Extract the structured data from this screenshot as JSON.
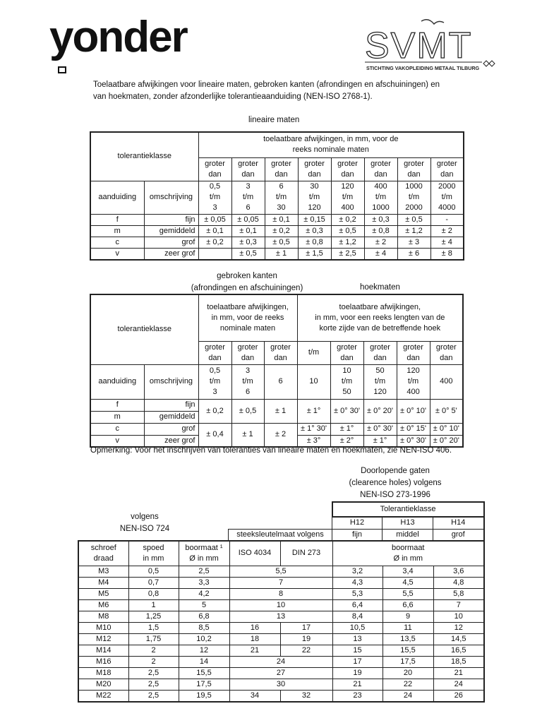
{
  "header": {
    "logo_left": "yonder",
    "logo_right": "SVMT",
    "logo_right_sub": "STICHTING VAKOPLEIDING METAAL TILBURG"
  },
  "intro": [
    "Toelaatbare afwijkingen  voor lineaire maten, gebroken kanten (afrondingen en afschuiningen) en",
    "van hoekmaten, zonder afzonderlijke tolerantieaanduiding  (NEN-ISO 2768-1)."
  ],
  "t1": {
    "caption": "lineaire maten",
    "class_label": "tolerantieklasse",
    "head_lines": [
      "toelaatbare afwijkingen, in mm, voor de",
      "reeks nominale maten"
    ],
    "groter": [
      "groter",
      "dan"
    ],
    "aanduiding": "aanduiding",
    "omschrijving": "omschrijving",
    "ranges": [
      [
        "0,5",
        "t/m",
        "3"
      ],
      [
        "3",
        "t/m",
        "6"
      ],
      [
        "6",
        "t/m",
        "30"
      ],
      [
        "30",
        "t/m",
        "120"
      ],
      [
        "120",
        "t/m",
        "400"
      ],
      [
        "400",
        "t/m",
        "1000"
      ],
      [
        "1000",
        "t/m",
        "2000"
      ],
      [
        "2000",
        "t/m",
        "4000"
      ]
    ],
    "rows": [
      [
        "f",
        "fijn",
        "± 0,05",
        "± 0,05",
        "± 0,1",
        "± 0,15",
        "± 0,2",
        "± 0,3",
        "± 0,5",
        "-"
      ],
      [
        "m",
        "gemiddeld",
        "± 0,1",
        "± 0,1",
        "± 0,2",
        "± 0,3",
        "± 0,5",
        "± 0,8",
        "± 1,2",
        "± 2"
      ],
      [
        "c",
        "grof",
        "± 0,2",
        "± 0,3",
        "± 0,5",
        "± 0,8",
        "± 1,2",
        "± 2",
        "± 3",
        "± 4"
      ],
      [
        "v",
        "zeer grof",
        "",
        "± 0,5",
        "± 1",
        "± 1,5",
        "± 2,5",
        "± 4",
        "± 6",
        "± 8"
      ]
    ]
  },
  "t2": {
    "caption_left": [
      "gebroken kanten",
      "(afrondingen en afschuiningen)"
    ],
    "caption_right": "hoekmaten",
    "class_label": "tolerantieklasse",
    "head_left": [
      "toelaatbare afwijkingen,",
      "in mm, voor de reeks",
      "nominale maten"
    ],
    "head_right": [
      "toelaatbare afwijkingen,",
      "in mm, voor een reeks lengten van de",
      "korte zijde van de betreffende hoek"
    ],
    "sub": [
      [
        "groter",
        "dan"
      ],
      [
        "groter",
        "dan"
      ],
      [
        "groter",
        "dan"
      ],
      [
        "t/m"
      ],
      [
        "groter",
        "dan"
      ],
      [
        "groter",
        "dan"
      ],
      [
        "groter",
        "dan"
      ],
      [
        "groter",
        "dan"
      ]
    ],
    "aanduiding": "aanduiding",
    "omschrijving": "omschrijving",
    "ranges": [
      [
        "0,5",
        "t/m",
        "3"
      ],
      [
        "3",
        "t/m",
        "6"
      ],
      [
        "6"
      ],
      [
        "10"
      ],
      [
        "10",
        "t/m",
        "50"
      ],
      [
        "50",
        "t/m",
        "120"
      ],
      [
        "120",
        "t/m",
        "400"
      ],
      [
        "400"
      ]
    ],
    "classes": [
      [
        "f",
        "fijn"
      ],
      [
        "m",
        "gemiddeld"
      ],
      [
        "c",
        "grof"
      ],
      [
        "v",
        "zeer grof"
      ]
    ],
    "fm_edges": [
      "± 0,2",
      "± 0,5",
      "± 1"
    ],
    "fm_angles": [
      "± 1°",
      "± 0° 30'",
      "± 0° 20'",
      "± 0° 10'",
      "± 0° 5'"
    ],
    "cv_edges": [
      "± 0,4",
      "± 1",
      "± 2"
    ],
    "c_angles": [
      "± 1° 30'",
      "± 1°",
      "± 0° 30'",
      "± 0° 15'",
      "± 0° 10'"
    ],
    "v_angles": [
      "± 3°",
      "± 2°",
      "± 1°",
      "± 0° 30'",
      "± 0° 20'"
    ],
    "note": "Opmerking: Voor het inschrijven van toleranties van lineaire maten en hoekmaten, zie NEN-ISO 406."
  },
  "t3": {
    "caption_right": [
      "Doorlopende gaten",
      "(clearence holes) volgens",
      "NEN-ISO 273-1996"
    ],
    "caption_left": [
      "volgens",
      "NEN-ISO 724"
    ],
    "tol_label": "Tolerantieklasse",
    "classes": [
      "H12",
      "H13",
      "H14"
    ],
    "class_names": [
      "fijn",
      "middel",
      "grof"
    ],
    "steek_label": "steeksleutelmaat volgens",
    "cols": [
      [
        "schroef",
        "draad"
      ],
      [
        "spoed",
        "in mm"
      ],
      [
        "boormaat ¹",
        "Ø in mm"
      ],
      [
        "ISO 4034"
      ],
      [
        "DIN 273"
      ],
      [
        "boormaat",
        "Ø in mm"
      ]
    ],
    "rows": [
      [
        "M3",
        "0,5",
        "2,5",
        "5,5",
        null,
        "3,2",
        "3,4",
        "3,6"
      ],
      [
        "M4",
        "0,7",
        "3,3",
        "7",
        null,
        "4,3",
        "4,5",
        "4,8"
      ],
      [
        "M5",
        "0,8",
        "4,2",
        "8",
        null,
        "5,3",
        "5,5",
        "5,8"
      ],
      [
        "M6",
        "1",
        "5",
        "10",
        null,
        "6,4",
        "6,6",
        "7"
      ],
      [
        "M8",
        "1,25",
        "6,8",
        "13",
        null,
        "8,4",
        "9",
        "10"
      ],
      [
        "M10",
        "1,5",
        "8,5",
        "16",
        "17",
        "10,5",
        "11",
        "12"
      ],
      [
        "M12",
        "1,75",
        "10,2",
        "18",
        "19",
        "13",
        "13,5",
        "14,5"
      ],
      [
        "M14",
        "2",
        "12",
        "21",
        "22",
        "15",
        "15,5",
        "16,5"
      ],
      [
        "M16",
        "2",
        "14",
        "24",
        null,
        "17",
        "17,5",
        "18,5"
      ],
      [
        "M18",
        "2,5",
        "15,5",
        "27",
        null,
        "19",
        "20",
        "21"
      ],
      [
        "M20",
        "2,5",
        "17,5",
        "30",
        null,
        "21",
        "22",
        "24"
      ],
      [
        "M22",
        "2,5",
        "19,5",
        "34",
        "32",
        "23",
        "24",
        "26"
      ]
    ]
  }
}
